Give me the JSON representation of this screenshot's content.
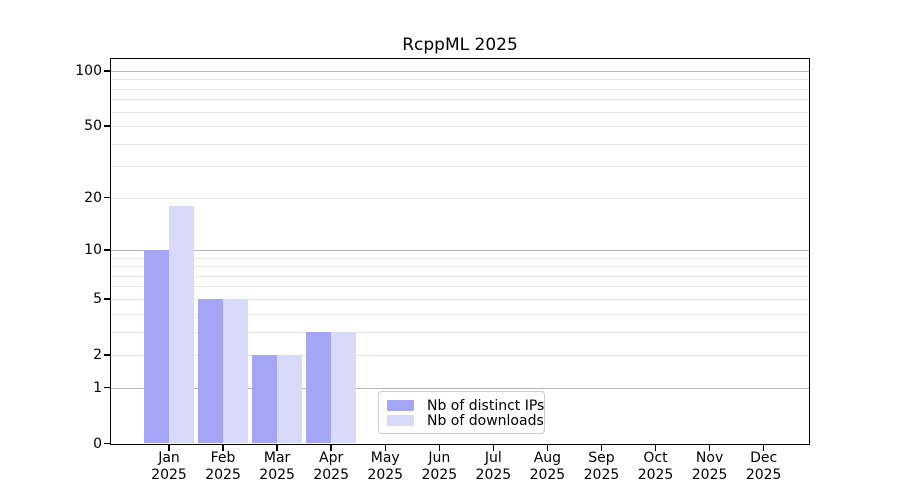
{
  "title": "RcppML 2025",
  "chart_data": {
    "type": "bar",
    "title": "RcppML 2025",
    "scale": "log1p",
    "categories": [
      "Jan",
      "Feb",
      "Mar",
      "Apr",
      "May",
      "Jun",
      "Jul",
      "Aug",
      "Sep",
      "Oct",
      "Nov",
      "Dec"
    ],
    "x_year_label": "2025",
    "series": [
      {
        "name": "Nb of distinct IPs",
        "color": "#a5a5f5",
        "values": [
          10,
          5,
          2,
          3,
          0,
          0,
          0,
          0,
          0,
          0,
          0,
          0
        ]
      },
      {
        "name": "Nb of downloads",
        "color": "#d9d9f9",
        "values": [
          18,
          5,
          2,
          3,
          0,
          0,
          0,
          0,
          0,
          0,
          0,
          0
        ]
      }
    ],
    "y_ticks": [
      0,
      1,
      2,
      5,
      10,
      20,
      50,
      100
    ],
    "y_tick_labels": [
      "0",
      "1",
      "2",
      "5",
      "10",
      "20",
      "50",
      "100"
    ],
    "y_major_gridlines": [
      1,
      10,
      100
    ],
    "y_minor_gridlines": [
      2,
      3,
      4,
      5,
      6,
      7,
      8,
      9,
      20,
      30,
      40,
      50,
      60,
      70,
      80,
      90
    ],
    "ylim": [
      0,
      117
    ],
    "grid": true,
    "legend_position": "lower center",
    "colors": {
      "major_grid": "#b8b8b8",
      "minor_grid": "#e7e7e7",
      "spine": "#000000",
      "background": "#ffffff"
    }
  }
}
